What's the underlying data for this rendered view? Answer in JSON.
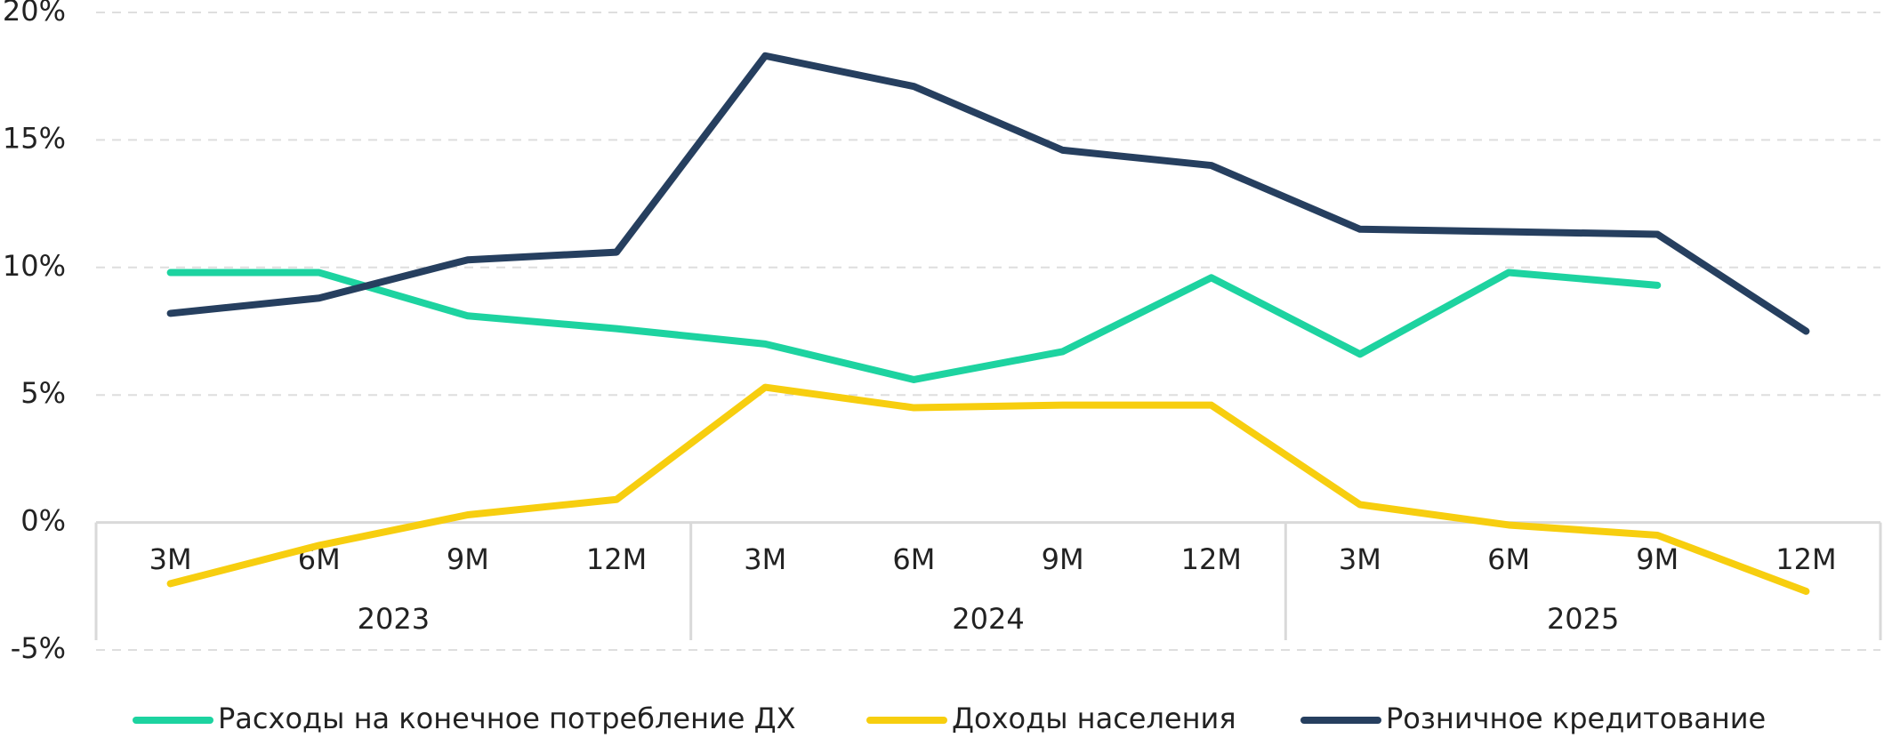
{
  "chart_data": {
    "type": "line",
    "categories": [
      "3М",
      "6М",
      "9М",
      "12М",
      "3М",
      "6М",
      "9М",
      "12М",
      "3М",
      "6М",
      "9М",
      "12М"
    ],
    "groups": [
      {
        "name": "2023",
        "size": 4
      },
      {
        "name": "2024",
        "size": 4
      },
      {
        "name": "2025",
        "size": 4
      }
    ],
    "series": [
      {
        "name": "Расходы на конечное потребление ДХ",
        "color": "#1dd3a0",
        "values": [
          9.8,
          9.8,
          8.1,
          7.6,
          7.0,
          5.6,
          6.7,
          9.6,
          6.6,
          9.8,
          9.3,
          null
        ]
      },
      {
        "name": "Доходы населения",
        "color": "#f7ce0f",
        "values": [
          -2.4,
          -0.9,
          0.3,
          0.9,
          5.3,
          4.5,
          4.6,
          4.6,
          0.7,
          -0.1,
          -0.5,
          -2.7
        ]
      },
      {
        "name": "Розничное кредитование",
        "color": "#263f5f",
        "values": [
          8.2,
          8.8,
          10.3,
          10.6,
          18.3,
          17.1,
          14.6,
          14.0,
          11.5,
          11.4,
          11.3,
          7.5
        ]
      }
    ],
    "ylim": [
      -5,
      20
    ],
    "yticks": [
      {
        "value": -5,
        "label": "-5%"
      },
      {
        "value": 0,
        "label": "0%"
      },
      {
        "value": 5,
        "label": "5%"
      },
      {
        "value": 10,
        "label": "10%"
      },
      {
        "value": 15,
        "label": "15%"
      },
      {
        "value": 20,
        "label": "20%"
      }
    ],
    "grid": true,
    "legend": "bottom"
  }
}
